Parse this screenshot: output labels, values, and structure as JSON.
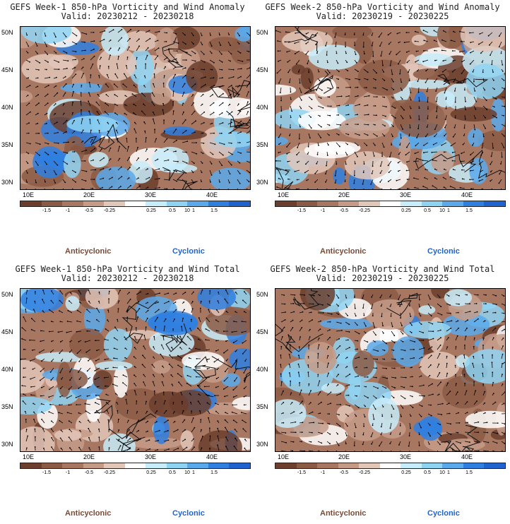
{
  "panels": [
    {
      "title": "GEFS Week-1 850-hPa Vorticity and Wind Anomaly",
      "valid": "Valid: 20230212 - 20230218"
    },
    {
      "title": "GEFS Week-2 850-hPa Vorticity and Wind Anomaly",
      "valid": "Valid: 20230219 - 20230225"
    },
    {
      "title": "GEFS Week-1 850-hPa Vorticity and Wind Total",
      "valid": "Valid: 20230212 - 20230218"
    },
    {
      "title": "GEFS Week-2 850-hPa Vorticity and Wind Total",
      "valid": "Valid: 20230219 - 20230225"
    }
  ],
  "lat_labels": [
    "50N",
    "45N",
    "40N",
    "35N",
    "30N"
  ],
  "lon_labels": [
    "10E",
    "20E",
    "30E",
    "40E"
  ],
  "colorbar": {
    "ticks": [
      "-1.5",
      "-1",
      "-0.5",
      "-0.25",
      "0.25",
      "0.5",
      "1",
      "1.5"
    ],
    "unit_marker": "10",
    "colors": [
      "#6b3e2e",
      "#8b5a45",
      "#a77762",
      "#c59b88",
      "#e2c6b8",
      "#ffffff",
      "#c7ecfa",
      "#8fd3f3",
      "#5aa9ea",
      "#2f7fe0",
      "#1f63cf"
    ]
  },
  "legend": {
    "anticyclonic": "Anticyclonic",
    "cyclonic": "Cyclonic"
  }
}
